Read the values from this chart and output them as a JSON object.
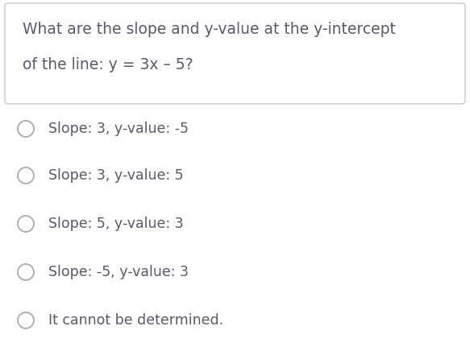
{
  "title_line1": "What are the slope and y-value at the y-intercept",
  "title_line2": "of the line: y = 3x – 5?",
  "options": [
    "Slope: 3, y-value: -5",
    "Slope: 3, y-value: 5",
    "Slope: 5, y-value: 3",
    "Slope: -5, y-value: 3",
    "It cannot be determined."
  ],
  "bg_color": "#ffffff",
  "box_bg": "#ffffff",
  "box_edge": "#c8c8c8",
  "title_color": "#5a5a6a",
  "option_color": "#5a5a6a",
  "circle_edgecolor": "#b0b0b0",
  "title_fontsize": 13.5,
  "option_fontsize": 12.5,
  "fig_width": 5.83,
  "fig_height": 4.41,
  "dpi": 100
}
